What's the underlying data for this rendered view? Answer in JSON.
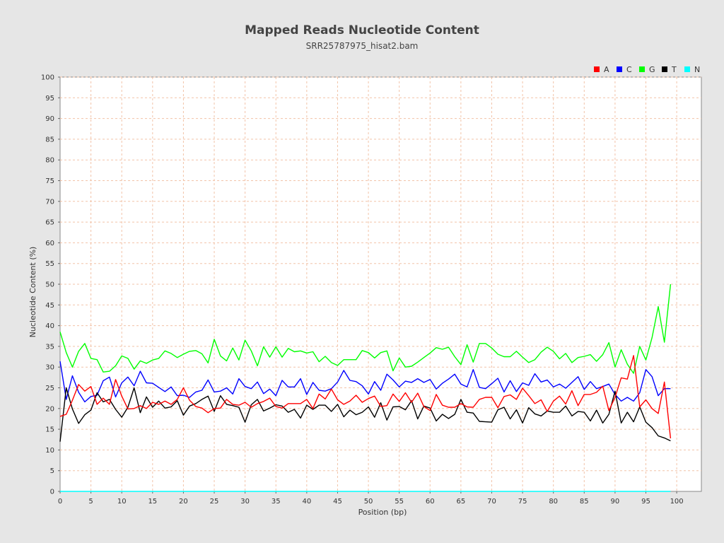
{
  "chart_data": {
    "type": "line",
    "title": "Mapped Reads Nucleotide Content",
    "subtitle": "SRR25787975_hisat2.bam",
    "xlabel": "Position (bp)",
    "ylabel": "Nucleotide Content (%)",
    "xlim": [
      0,
      104
    ],
    "ylim": [
      0,
      100
    ],
    "x_ticks": [
      0,
      5,
      10,
      15,
      20,
      25,
      30,
      35,
      40,
      45,
      50,
      55,
      60,
      65,
      70,
      75,
      80,
      85,
      90,
      95,
      100
    ],
    "y_ticks": [
      0,
      5,
      10,
      15,
      20,
      25,
      30,
      35,
      40,
      45,
      50,
      55,
      60,
      65,
      70,
      75,
      80,
      85,
      90,
      95,
      100
    ],
    "grid": true,
    "legend_position": "top-right",
    "x": [
      0,
      1,
      2,
      3,
      4,
      5,
      6,
      7,
      8,
      9,
      10,
      11,
      12,
      13,
      14,
      15,
      16,
      17,
      18,
      19,
      20,
      21,
      22,
      23,
      24,
      25,
      26,
      27,
      28,
      29,
      30,
      31,
      32,
      33,
      34,
      35,
      36,
      37,
      38,
      39,
      40,
      41,
      42,
      43,
      44,
      45,
      46,
      47,
      48,
      49,
      50,
      51,
      52,
      53,
      54,
      55,
      56,
      57,
      58,
      59,
      60,
      61,
      62,
      63,
      64,
      65,
      66,
      67,
      68,
      69,
      70,
      71,
      72,
      73,
      74,
      75,
      76,
      77,
      78,
      79,
      80,
      81,
      82,
      83,
      84,
      85,
      86,
      87,
      88,
      89,
      90,
      91,
      92,
      93,
      94,
      95,
      96,
      97,
      98,
      99
    ],
    "series": [
      {
        "name": "A",
        "color": "#ff0000",
        "values": [
          18.1,
          18.6,
          22.0,
          25.8,
          24.2,
          25.3,
          21.0,
          22.5,
          21.0,
          27.0,
          23.0,
          19.9,
          20.0,
          20.7,
          20.0,
          21.5,
          21.0,
          21.8,
          21.0,
          22.2,
          25.0,
          22.0,
          20.5,
          20.1,
          19.0,
          20.0,
          20.1,
          22.2,
          21.0,
          20.8,
          21.5,
          20.3,
          21.2,
          21.7,
          22.5,
          20.5,
          20.1,
          21.2,
          21.2,
          21.2,
          22.2,
          20.0,
          23.5,
          22.3,
          24.7,
          22.1,
          21.0,
          21.8,
          23.2,
          21.5,
          22.4,
          23.0,
          20.5,
          20.7,
          23.5,
          21.7,
          23.8,
          21.5,
          23.7,
          20.5,
          19.5,
          23.4,
          20.8,
          20.3,
          20.3,
          21.2,
          20.4,
          20.3,
          22.2,
          22.7,
          22.7,
          20.2,
          22.9,
          23.3,
          22.2,
          24.9,
          23.1,
          21.2,
          22.1,
          19.3,
          21.8,
          23.0,
          21.1,
          24.3,
          20.7,
          23.4,
          23.4,
          23.9,
          25.4,
          19.5,
          22.7,
          27.4,
          27.1,
          32.8,
          20.4,
          22.1,
          20.0,
          18.8,
          26.4,
          12.8
        ]
      },
      {
        "name": "C",
        "color": "#0000ff",
        "values": [
          31.4,
          22.2,
          27.9,
          23.9,
          21.6,
          22.9,
          23.2,
          26.7,
          27.6,
          22.8,
          26.2,
          27.6,
          25.5,
          29.0,
          26.2,
          26.1,
          25.1,
          24.1,
          25.2,
          23.1,
          23.2,
          22.7,
          24.0,
          24.4,
          26.9,
          24.0,
          24.2,
          25.0,
          23.5,
          27.2,
          25.3,
          24.8,
          26.4,
          23.6,
          24.7,
          23.1,
          26.8,
          25.2,
          25.2,
          27.2,
          23.4,
          26.3,
          24.4,
          24.2,
          24.8,
          26.4,
          29.2,
          26.8,
          26.5,
          25.5,
          23.5,
          26.5,
          24.4,
          28.3,
          26.9,
          25.2,
          26.6,
          26.3,
          27.2,
          26.3,
          27.0,
          24.7,
          26.1,
          27.1,
          28.3,
          25.9,
          25.2,
          29.4,
          25.1,
          24.8,
          26.0,
          27.3,
          24.0,
          26.7,
          24.1,
          26.2,
          25.6,
          28.4,
          26.4,
          26.9,
          25.2,
          25.9,
          24.9,
          26.3,
          27.7,
          24.6,
          26.5,
          24.8,
          25.3,
          25.9,
          23.4,
          21.8,
          22.7,
          21.8,
          23.8,
          29.4,
          27.7,
          23.1,
          24.8,
          24.8
        ]
      },
      {
        "name": "G",
        "color": "#00ff00",
        "values": [
          38.5,
          33.5,
          30.0,
          33.8,
          35.7,
          32.1,
          31.8,
          28.8,
          29.0,
          30.3,
          32.7,
          32.1,
          29.5,
          31.5,
          30.9,
          31.7,
          32.1,
          33.9,
          33.3,
          32.3,
          33.1,
          33.8,
          34.0,
          33.2,
          31.0,
          36.7,
          32.7,
          31.5,
          34.6,
          31.7,
          36.5,
          33.9,
          30.3,
          34.9,
          32.4,
          34.9,
          32.4,
          34.5,
          33.7,
          33.9,
          33.4,
          33.7,
          31.3,
          32.6,
          31.1,
          30.4,
          31.8,
          31.8,
          31.8,
          34.0,
          33.5,
          32.2,
          33.5,
          33.9,
          29.1,
          32.2,
          30.0,
          30.2,
          31.2,
          32.3,
          33.4,
          34.7,
          34.3,
          34.8,
          32.5,
          30.6,
          35.4,
          31.2,
          35.7,
          35.7,
          34.6,
          33.1,
          32.5,
          32.5,
          33.8,
          32.4,
          31.1,
          31.8,
          33.6,
          34.8,
          33.8,
          32.0,
          33.3,
          31.1,
          32.3,
          32.6,
          33.0,
          31.4,
          33.0,
          35.9,
          30.0,
          34.2,
          30.7,
          28.5,
          35.0,
          31.7,
          37.1,
          44.6,
          36.0,
          50.0
        ]
      },
      {
        "name": "T",
        "color": "#000000",
        "values": [
          12.0,
          25.0,
          19.9,
          16.4,
          18.5,
          19.6,
          23.8,
          21.6,
          22.2,
          19.8,
          17.9,
          20.3,
          25.0,
          19.0,
          22.8,
          20.3,
          21.8,
          20.1,
          20.4,
          21.9,
          18.4,
          20.6,
          21.2,
          22.2,
          23.0,
          19.3,
          23.1,
          21.0,
          20.7,
          20.3,
          16.7,
          20.9,
          22.2,
          19.4,
          20.1,
          20.9,
          20.6,
          19.1,
          19.8,
          17.7,
          20.8,
          19.8,
          20.8,
          20.8,
          19.3,
          21.0,
          18.0,
          19.6,
          18.5,
          19.1,
          20.4,
          17.9,
          21.4,
          17.2,
          20.4,
          20.5,
          19.7,
          21.9,
          17.5,
          20.6,
          20.1,
          17.0,
          18.6,
          17.6,
          18.6,
          22.2,
          19.1,
          18.9,
          16.9,
          16.8,
          16.7,
          19.7,
          20.3,
          17.5,
          19.7,
          16.5,
          20.2,
          18.7,
          18.2,
          19.4,
          19.1,
          19.1,
          20.6,
          18.2,
          19.3,
          19.1,
          17.0,
          19.6,
          16.5,
          18.6,
          24.2,
          16.5,
          19.1,
          16.8,
          20.4,
          16.7,
          15.4,
          13.4,
          12.9,
          12.2
        ]
      },
      {
        "name": "N",
        "color": "#00ffff",
        "values": [
          0,
          0,
          0,
          0,
          0,
          0,
          0,
          0,
          0,
          0,
          0,
          0,
          0,
          0,
          0,
          0,
          0,
          0,
          0,
          0,
          0,
          0,
          0,
          0,
          0,
          0,
          0,
          0,
          0,
          0,
          0,
          0,
          0,
          0,
          0,
          0,
          0,
          0,
          0,
          0,
          0,
          0,
          0,
          0,
          0,
          0,
          0,
          0,
          0,
          0,
          0,
          0,
          0,
          0,
          0,
          0,
          0,
          0,
          0,
          0,
          0,
          0,
          0,
          0,
          0,
          0,
          0,
          0,
          0,
          0,
          0,
          0,
          0,
          0,
          0,
          0,
          0,
          0,
          0,
          0,
          0,
          0,
          0,
          0,
          0,
          0,
          0,
          0,
          0,
          0,
          0,
          0,
          0,
          0,
          0,
          0,
          0,
          0,
          0,
          0
        ]
      }
    ]
  }
}
